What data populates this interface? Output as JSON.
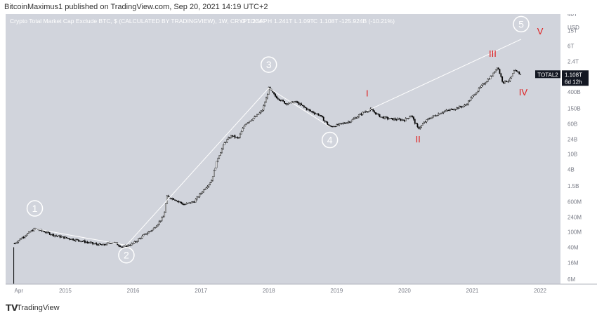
{
  "header": {
    "publisher": "BitcoinMaximus1 published on TradingView.com, Sep 20, 2021 14:19 UTC+2"
  },
  "footer": {
    "brand": "TradingView",
    "logo_icon": "tradingview-logo-icon"
  },
  "colors": {
    "background": "#d1d4dc",
    "candle": "#000000",
    "trendline": "#ffffff",
    "wave_red": "#e01e1e",
    "price_tag_bg": "#131722"
  },
  "chart_data": {
    "type": "candlestick",
    "title": "Crypto Total Market Cap Exclude BTC, $ (CALCULATED BY TRADINGVIEW), 1W, CRYPTOCAP",
    "ohlc": {
      "o": "1.234T",
      "h": "1.241T",
      "l": "1.09T",
      "c": "1.108T",
      "change": "-125.924B (-10.21%)"
    },
    "y_scale": "log",
    "y_unit": "USD",
    "y_ticks": [
      {
        "label": "40T",
        "value": 40000000000000.0
      },
      {
        "label": "15T",
        "value": 15000000000000.0
      },
      {
        "label": "6T",
        "value": 6000000000000.0
      },
      {
        "label": "2.4T",
        "value": 2400000000000.0
      },
      {
        "label": "1T",
        "value": 1000000000000.0
      },
      {
        "label": "400B",
        "value": 400000000000.0
      },
      {
        "label": "150B",
        "value": 150000000000.0
      },
      {
        "label": "60B",
        "value": 60000000000.0
      },
      {
        "label": "24B",
        "value": 24000000000.0
      },
      {
        "label": "10B",
        "value": 10000000000.0
      },
      {
        "label": "4B",
        "value": 4000000000.0
      },
      {
        "label": "1.5B",
        "value": 1500000000.0
      },
      {
        "label": "600M",
        "value": 600000000.0
      },
      {
        "label": "240M",
        "value": 240000000.0
      },
      {
        "label": "100M",
        "value": 100000000.0
      },
      {
        "label": "40M",
        "value": 40000000.0
      },
      {
        "label": "16M",
        "value": 16000000.0
      },
      {
        "label": "6M",
        "value": 6000000.0
      }
    ],
    "x_ticks": [
      {
        "label": "Apr",
        "date": 2014.25
      },
      {
        "label": "2015",
        "date": 2015.0
      },
      {
        "label": "2016",
        "date": 2016.0
      },
      {
        "label": "2017",
        "date": 2017.0
      },
      {
        "label": "2018",
        "date": 2018.0
      },
      {
        "label": "2019",
        "date": 2019.0
      },
      {
        "label": "2020",
        "date": 2020.0
      },
      {
        "label": "2021",
        "date": 2021.0
      },
      {
        "label": "2022",
        "date": 2022.0
      }
    ],
    "price_points": [
      [
        2014.25,
        50000000.0
      ],
      [
        2014.4,
        80000000.0
      ],
      [
        2014.55,
        120000000.0
      ],
      [
        2014.7,
        100000000.0
      ],
      [
        2014.85,
        80000000.0
      ],
      [
        2015.0,
        70000000.0
      ],
      [
        2015.2,
        60000000.0
      ],
      [
        2015.4,
        50000000.0
      ],
      [
        2015.55,
        45000000.0
      ],
      [
        2015.7,
        55000000.0
      ],
      [
        2015.85,
        40000000.0
      ],
      [
        2016.0,
        50000000.0
      ],
      [
        2016.15,
        80000000.0
      ],
      [
        2016.3,
        120000000.0
      ],
      [
        2016.45,
        250000000.0
      ],
      [
        2016.5,
        800000000.0
      ],
      [
        2016.6,
        700000000.0
      ],
      [
        2016.75,
        500000000.0
      ],
      [
        2016.9,
        600000000.0
      ],
      [
        2017.0,
        1000000000.0
      ],
      [
        2017.15,
        2000000000.0
      ],
      [
        2017.25,
        8000000000.0
      ],
      [
        2017.35,
        20000000000.0
      ],
      [
        2017.45,
        30000000000.0
      ],
      [
        2017.55,
        25000000000.0
      ],
      [
        2017.65,
        60000000000.0
      ],
      [
        2017.8,
        90000000000.0
      ],
      [
        2017.9,
        130000000000.0
      ],
      [
        2017.97,
        300000000000.0
      ],
      [
        2018.0,
        500000000000.0
      ],
      [
        2018.1,
        300000000000.0
      ],
      [
        2018.25,
        200000000000.0
      ],
      [
        2018.4,
        220000000000.0
      ],
      [
        2018.6,
        130000000000.0
      ],
      [
        2018.75,
        100000000000.0
      ],
      [
        2018.9,
        50000000000.0
      ],
      [
        2019.0,
        55000000000.0
      ],
      [
        2019.2,
        70000000000.0
      ],
      [
        2019.4,
        120000000000.0
      ],
      [
        2019.5,
        140000000000.0
      ],
      [
        2019.65,
        90000000000.0
      ],
      [
        2019.8,
        80000000000.0
      ],
      [
        2020.0,
        75000000000.0
      ],
      [
        2020.1,
        100000000000.0
      ],
      [
        2020.2,
        45000000000.0
      ],
      [
        2020.35,
        80000000000.0
      ],
      [
        2020.55,
        120000000000.0
      ],
      [
        2020.75,
        150000000000.0
      ],
      [
        2020.9,
        180000000000.0
      ],
      [
        2021.0,
        300000000000.0
      ],
      [
        2021.15,
        600000000000.0
      ],
      [
        2021.3,
        1100000000000.0
      ],
      [
        2021.37,
        1800000000000.0
      ],
      [
        2021.45,
        700000000000.0
      ],
      [
        2021.55,
        800000000000.0
      ],
      [
        2021.62,
        1400000000000.0
      ],
      [
        2021.68,
        1200000000000.0
      ],
      [
        2021.72,
        1108000000000.0
      ]
    ],
    "trendlines": [
      {
        "from": [
          2014.55,
          120000000.0
        ],
        "to": [
          2015.9,
          45000000.0
        ]
      },
      {
        "from": [
          2015.9,
          45000000.0
        ],
        "to": [
          2018.0,
          500000000000.0
        ]
      },
      {
        "from": [
          2018.0,
          500000000000.0
        ],
        "to": [
          2018.9,
          50000000000.0
        ]
      },
      {
        "from": [
          2019.45,
          130000000000.0
        ],
        "to": [
          2021.72,
          9000000000000.0
        ]
      }
    ],
    "wave_labels_circled": [
      {
        "label": "1",
        "date": 2014.55,
        "value": 400000000.0
      },
      {
        "label": "2",
        "date": 2015.9,
        "value": 25000000.0
      },
      {
        "label": "3",
        "date": 2018.0,
        "value": 2000000000000.0
      },
      {
        "label": "4",
        "date": 2018.9,
        "value": 23000000000.0
      },
      {
        "label": "5",
        "date": 2021.72,
        "value": 22000000000000.0
      }
    ],
    "wave_labels_red": [
      {
        "label": "I",
        "date": 2019.45,
        "value": 300000000000.0
      },
      {
        "label": "II",
        "date": 2020.2,
        "value": 20000000000.0
      },
      {
        "label": "III",
        "date": 2021.3,
        "value": 3200000000000.0
      },
      {
        "label": "IV",
        "date": 2021.75,
        "value": 320000000000.0
      },
      {
        "label": "V",
        "date": 2022.0,
        "value": 12000000000000.0
      }
    ],
    "price_tag": {
      "symbol": "TOTAL2",
      "value": "1.108T",
      "countdown": "6d 12h",
      "level": 1108000000000.0
    }
  }
}
